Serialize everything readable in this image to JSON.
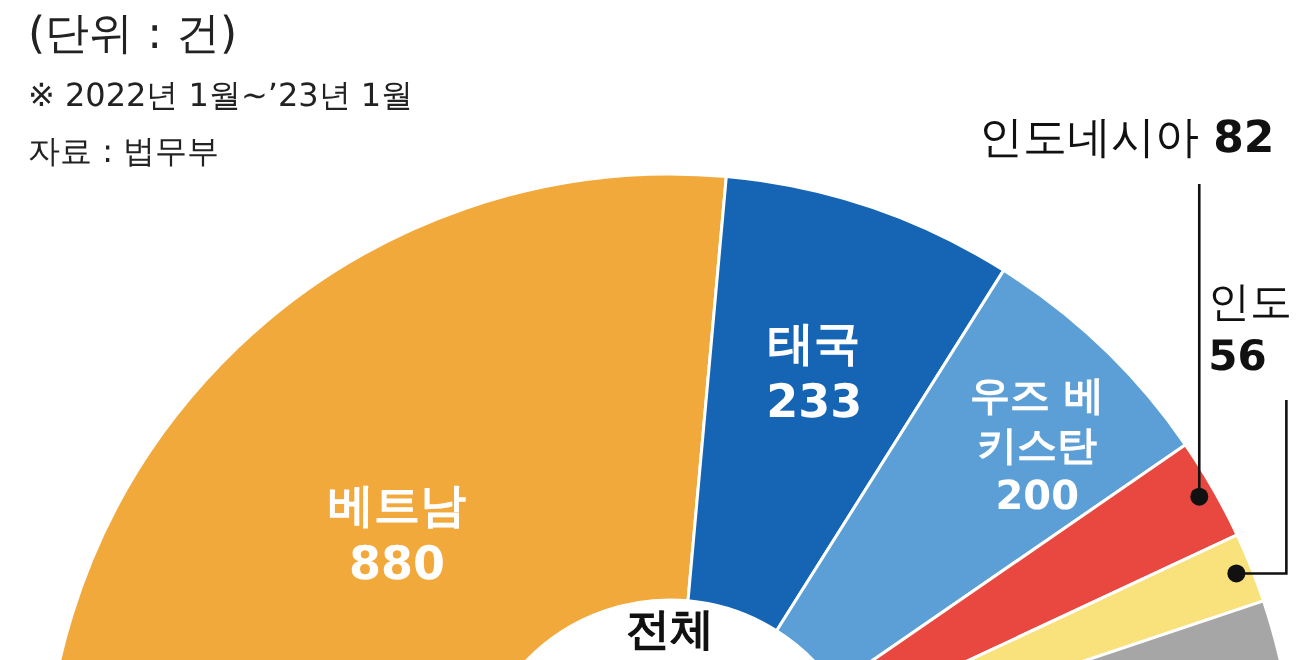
{
  "chart_data": {
    "type": "donut",
    "title": "(단위 : 건)",
    "annotations": [
      "※ 2022년 1월~’23년 1월",
      "자료 : 법무부",
      "전체"
    ],
    "categories": [
      "베트남",
      "태국",
      "우즈 베키스탄",
      "인도네시아",
      "인도",
      null
    ],
    "values": [
      880,
      233,
      200,
      82,
      56,
      1650
    ],
    "value_labels": [
      "880",
      "233",
      "200",
      "82",
      "56",
      null
    ],
    "colors": [
      "#f2a93b",
      "#1565b4",
      "#5b9fd6",
      "#e8483f",
      "#f9e17b",
      "#a6a6a6"
    ],
    "legend": false
  }
}
